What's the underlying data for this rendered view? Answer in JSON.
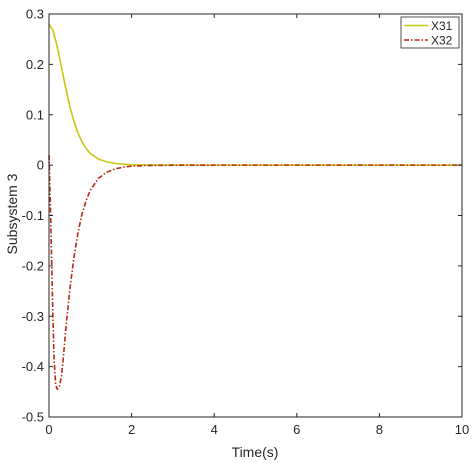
{
  "chart_data": {
    "type": "line",
    "title": "",
    "xlabel": "Time(s)",
    "ylabel": "Subsystem 3",
    "xlim": [
      0,
      10
    ],
    "ylim": [
      -0.5,
      0.3
    ],
    "xticks": [
      "0",
      "2",
      "4",
      "6",
      "8",
      "10"
    ],
    "yticks": [
      "0.3",
      "0.2",
      "0.1",
      "0",
      "-0.1",
      "-0.2",
      "-0.3",
      "-0.4",
      "-0.5"
    ],
    "grid": false,
    "legend_position": "top-right",
    "series": [
      {
        "name": "X31",
        "color": "#c8c814",
        "style": "solid",
        "x": [
          0,
          0.1,
          0.2,
          0.3,
          0.4,
          0.5,
          0.6,
          0.7,
          0.8,
          0.9,
          1.0,
          1.2,
          1.4,
          1.6,
          1.8,
          2.0,
          2.3,
          2.6,
          3.0,
          4.0,
          6.0,
          8.0,
          10.0
        ],
        "y": [
          0.28,
          0.267,
          0.235,
          0.195,
          0.155,
          0.118,
          0.088,
          0.064,
          0.046,
          0.033,
          0.023,
          0.012,
          0.0065,
          0.0035,
          0.0018,
          0.001,
          0.0004,
          0.0002,
          0.0001,
          0,
          0,
          0,
          0
        ]
      },
      {
        "name": "X32",
        "color": "#b52a12",
        "style": "dash-dot",
        "x": [
          0,
          0.04,
          0.08,
          0.12,
          0.16,
          0.2,
          0.25,
          0.3,
          0.35,
          0.4,
          0.5,
          0.6,
          0.7,
          0.8,
          0.9,
          1.0,
          1.2,
          1.4,
          1.6,
          1.8,
          2.0,
          2.3,
          2.6,
          3.0,
          4.0,
          6.0,
          8.0,
          10.0
        ],
        "y": [
          0.02,
          -0.1,
          -0.25,
          -0.38,
          -0.435,
          -0.445,
          -0.44,
          -0.42,
          -0.38,
          -0.33,
          -0.25,
          -0.185,
          -0.135,
          -0.097,
          -0.07,
          -0.05,
          -0.026,
          -0.014,
          -0.0075,
          -0.004,
          -0.002,
          -0.001,
          -0.0005,
          -0.0002,
          0,
          0,
          0,
          0
        ]
      }
    ]
  }
}
